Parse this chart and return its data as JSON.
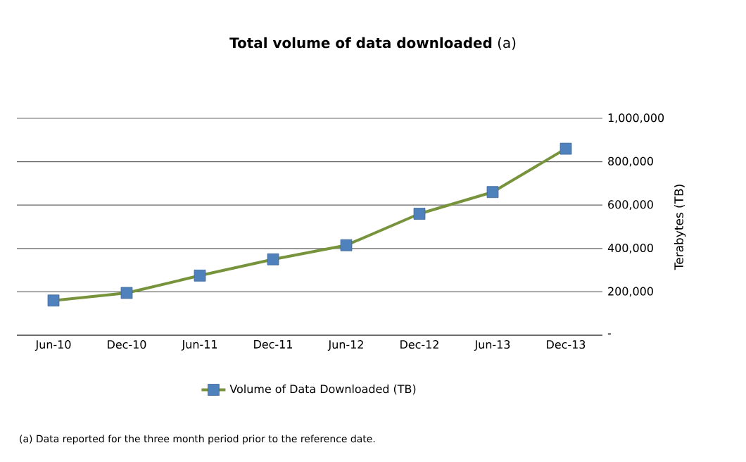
{
  "chart_data": {
    "type": "line",
    "title": "**Total volume of data downloaded** (a)",
    "categories": [
      "Jun-10",
      "Dec-10",
      "Jun-11",
      "Dec-11",
      "Jun-12",
      "Dec-12",
      "Jun-13",
      "Dec-13"
    ],
    "series": [
      {
        "name": "Volume of Data Downloaded (TB)",
        "color": "#77933c",
        "colors": [
          "#4f81bd",
          "#4f81bd",
          "#4f81bd",
          "#4f81bd",
          "#4f81bd",
          "#4f81bd",
          "#4f81bd",
          "#4f81bd"
        ],
        "values": [
          160000,
          195000,
          275000,
          350000,
          415000,
          560000,
          660000,
          860000
        ]
      }
    ],
    "ylabel": "Terabytes (TB)",
    "ylim": [
      0,
      1000000
    ],
    "yticks": [
      {
        "value": 0,
        "label": "-"
      },
      {
        "value": 200000,
        "label": "200,000"
      },
      {
        "value": 400000,
        "label": "400,000"
      },
      {
        "value": 600000,
        "label": "600,000"
      },
      {
        "value": 800000,
        "label": "800,000"
      },
      {
        "value": 1000000,
        "label": "1,000,000"
      }
    ],
    "grid": "y",
    "legend": "bottom",
    "marker": "square",
    "line_style": "solid",
    "annotations": [
      "(a) Data reported for the three month period prior to the reference date."
    ]
  }
}
